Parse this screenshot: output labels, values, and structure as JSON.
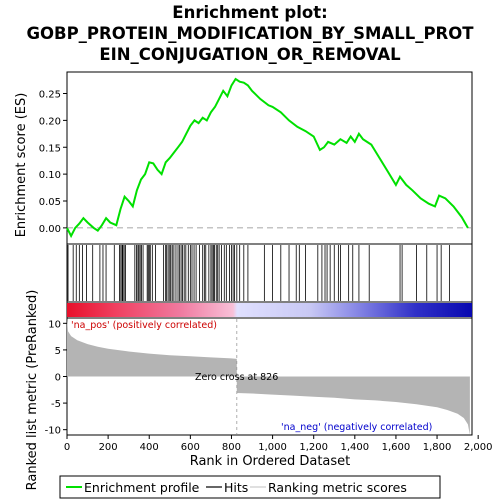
{
  "title": {
    "line1": "Enrichment plot:",
    "line2": "GOBP_PROTEIN_MODIFICATION_BY_SMALL_PROT",
    "line3": "EIN_CONJUGATION_OR_REMOVAL"
  },
  "colors": {
    "es_line": "#00e000",
    "hit_line": "#000000",
    "metric_fill": "#b4b4b4",
    "pos_label": "#cc0000",
    "neg_label": "#0000cc"
  },
  "labels": {
    "es_ylabel": "Enrichment score (ES)",
    "metric_ylabel": "Ranked list metric (PreRanked)",
    "xlabel": "Rank in Ordered Dataset",
    "pos_label": "'na_pos' (positively correlated)",
    "neg_label": "'na_neg' (negatively correlated)",
    "zero_cross": "Zero cross at 826"
  },
  "legend": {
    "items": [
      {
        "label": "Enrichment profile",
        "icon": "green-line"
      },
      {
        "label": "Hits",
        "icon": "black-line"
      },
      {
        "label": "Ranking metric scores",
        "icon": "gray-line"
      }
    ]
  },
  "chart_data": {
    "type": "line",
    "x_range": [
      0,
      1970
    ],
    "es_ylim": [
      -0.03,
      0.29
    ],
    "es_yticks": [
      "0.00",
      "0.05",
      "0.10",
      "0.15",
      "0.20",
      "0.25"
    ],
    "metric_ylim": [
      -11,
      11
    ],
    "metric_yticks": [
      "-10",
      "-5",
      "0",
      "5",
      "10"
    ],
    "xticks": [
      {
        "v": 0,
        "label": "0"
      },
      {
        "v": 200,
        "label": "200"
      },
      {
        "v": 400,
        "label": "400"
      },
      {
        "v": 600,
        "label": "600"
      },
      {
        "v": 800,
        "label": "800"
      },
      {
        "v": 1000,
        "label": "1,000"
      },
      {
        "v": 1200,
        "label": "1,200"
      },
      {
        "v": 1400,
        "label": "1,400"
      },
      {
        "v": 1600,
        "label": "1,600"
      },
      {
        "v": 1800,
        "label": "1,800"
      },
      {
        "v": 2000,
        "label": "2,000"
      }
    ],
    "zero_cross": 826,
    "es_curve": [
      [
        0,
        0.0
      ],
      [
        20,
        -0.015
      ],
      [
        40,
        0.0
      ],
      [
        60,
        0.008
      ],
      [
        80,
        0.018
      ],
      [
        100,
        0.01
      ],
      [
        130,
        0.0
      ],
      [
        150,
        -0.005
      ],
      [
        170,
        0.005
      ],
      [
        190,
        0.018
      ],
      [
        210,
        0.01
      ],
      [
        240,
        0.005
      ],
      [
        260,
        0.035
      ],
      [
        280,
        0.058
      ],
      [
        300,
        0.05
      ],
      [
        320,
        0.04
      ],
      [
        340,
        0.07
      ],
      [
        360,
        0.09
      ],
      [
        380,
        0.1
      ],
      [
        400,
        0.122
      ],
      [
        420,
        0.12
      ],
      [
        440,
        0.108
      ],
      [
        460,
        0.1
      ],
      [
        480,
        0.122
      ],
      [
        500,
        0.13
      ],
      [
        520,
        0.14
      ],
      [
        540,
        0.15
      ],
      [
        560,
        0.16
      ],
      [
        580,
        0.175
      ],
      [
        600,
        0.19
      ],
      [
        620,
        0.2
      ],
      [
        640,
        0.195
      ],
      [
        660,
        0.205
      ],
      [
        680,
        0.2
      ],
      [
        700,
        0.215
      ],
      [
        720,
        0.225
      ],
      [
        740,
        0.24
      ],
      [
        760,
        0.255
      ],
      [
        780,
        0.245
      ],
      [
        800,
        0.265
      ],
      [
        820,
        0.277
      ],
      [
        840,
        0.272
      ],
      [
        860,
        0.27
      ],
      [
        880,
        0.265
      ],
      [
        900,
        0.255
      ],
      [
        940,
        0.24
      ],
      [
        980,
        0.228
      ],
      [
        1000,
        0.225
      ],
      [
        1040,
        0.215
      ],
      [
        1080,
        0.2
      ],
      [
        1120,
        0.188
      ],
      [
        1160,
        0.18
      ],
      [
        1200,
        0.17
      ],
      [
        1230,
        0.145
      ],
      [
        1250,
        0.15
      ],
      [
        1270,
        0.16
      ],
      [
        1300,
        0.155
      ],
      [
        1330,
        0.165
      ],
      [
        1360,
        0.158
      ],
      [
        1380,
        0.17
      ],
      [
        1400,
        0.16
      ],
      [
        1420,
        0.175
      ],
      [
        1440,
        0.165
      ],
      [
        1480,
        0.155
      ],
      [
        1520,
        0.13
      ],
      [
        1560,
        0.105
      ],
      [
        1600,
        0.08
      ],
      [
        1620,
        0.095
      ],
      [
        1650,
        0.08
      ],
      [
        1680,
        0.07
      ],
      [
        1720,
        0.055
      ],
      [
        1760,
        0.045
      ],
      [
        1790,
        0.04
      ],
      [
        1810,
        0.06
      ],
      [
        1840,
        0.055
      ],
      [
        1880,
        0.04
      ],
      [
        1920,
        0.02
      ],
      [
        1950,
        0.0
      ]
    ],
    "metric_curve": [
      [
        0,
        11.0
      ],
      [
        5,
        8.5
      ],
      [
        20,
        7.6
      ],
      [
        50,
        6.8
      ],
      [
        100,
        6.1
      ],
      [
        150,
        5.6
      ],
      [
        200,
        5.2
      ],
      [
        300,
        4.7
      ],
      [
        400,
        4.3
      ],
      [
        500,
        4.0
      ],
      [
        600,
        3.8
      ],
      [
        700,
        3.6
      ],
      [
        800,
        3.4
      ],
      [
        826,
        3.3
      ],
      [
        826,
        -3.1
      ],
      [
        900,
        -3.2
      ],
      [
        1000,
        -3.4
      ],
      [
        1100,
        -3.6
      ],
      [
        1200,
        -3.8
      ],
      [
        1300,
        -4.0
      ],
      [
        1400,
        -4.3
      ],
      [
        1500,
        -4.5
      ],
      [
        1600,
        -4.8
      ],
      [
        1700,
        -5.2
      ],
      [
        1800,
        -5.8
      ],
      [
        1850,
        -6.3
      ],
      [
        1900,
        -7.0
      ],
      [
        1930,
        -7.8
      ],
      [
        1950,
        -9.0
      ],
      [
        1960,
        -11.0
      ]
    ],
    "hits": [
      5,
      30,
      45,
      60,
      75,
      95,
      125,
      160,
      175,
      190,
      230,
      255,
      262,
      268,
      272,
      278,
      285,
      330,
      338,
      345,
      350,
      356,
      362,
      370,
      390,
      395,
      400,
      405,
      415,
      430,
      470,
      480,
      485,
      492,
      500,
      505,
      512,
      520,
      530,
      540,
      548,
      555,
      562,
      570,
      578,
      590,
      600,
      608,
      618,
      628,
      645,
      660,
      668,
      675,
      690,
      700,
      706,
      712,
      718,
      726,
      733,
      740,
      752,
      765,
      775,
      790,
      800,
      808,
      815,
      826,
      840,
      860,
      880,
      960,
      1000,
      1040,
      1080,
      1115,
      1130,
      1160,
      1220,
      1240,
      1255,
      1265,
      1280,
      1300,
      1320,
      1330,
      1370,
      1390,
      1420,
      1470,
      1620,
      1630,
      1700,
      1750,
      1800,
      1820,
      1860
    ]
  }
}
